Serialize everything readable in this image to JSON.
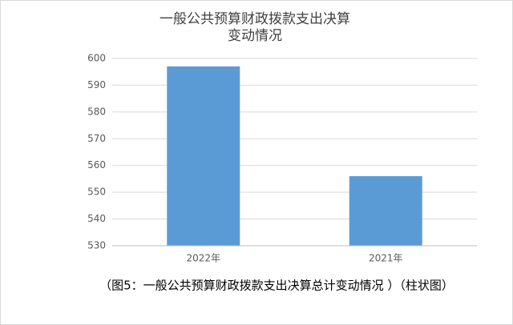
{
  "chart_data": {
    "type": "bar",
    "title": [
      "一般公共预算财政拨款支出决算",
      "变动情况"
    ],
    "categories": [
      "2022年",
      "2021年"
    ],
    "values": [
      597,
      556
    ],
    "color": "#5b9bd5",
    "ylim": [
      530,
      600
    ],
    "yticks": [
      530,
      540,
      550,
      560,
      570,
      580,
      590,
      600
    ],
    "grid": true,
    "caption": "（图5：一般公共预算财政拨款支出决算总计变动情况 ）（柱状图）"
  }
}
